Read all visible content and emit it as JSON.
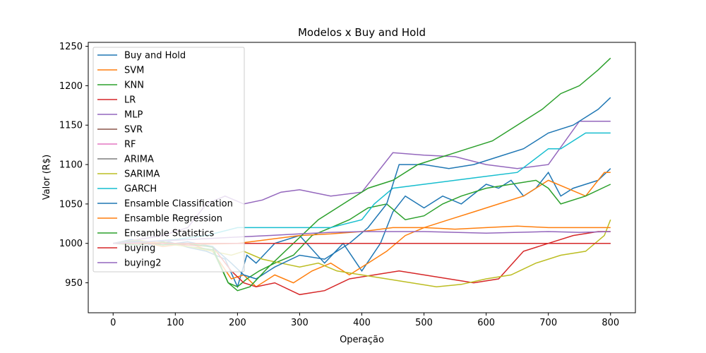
{
  "chart_data": {
    "type": "line",
    "title": "Modelos x Buy and Hold",
    "xlabel": "Operação",
    "ylabel": "Valor (R$)",
    "xlim": [
      -40,
      840
    ],
    "ylim": [
      912,
      1255
    ],
    "xticks": [
      0,
      100,
      200,
      300,
      400,
      500,
      600,
      700,
      800
    ],
    "yticks": [
      950,
      1000,
      1050,
      1100,
      1150,
      1200,
      1250
    ],
    "grid": false,
    "legend_position": "top-left",
    "series": [
      {
        "name": "Buy and Hold",
        "color": "#1f77b4",
        "x": [
          0,
          30,
          60,
          90,
          120,
          150,
          180,
          200,
          215,
          230,
          260,
          300,
          340,
          370,
          400,
          430,
          450,
          470,
          500,
          530,
          560,
          600,
          620,
          640,
          660,
          680,
          700,
          720,
          740,
          760,
          780,
          800
        ],
        "y": [
          1000,
          1005,
          998,
          1002,
          995,
          990,
          980,
          945,
          985,
          975,
          1000,
          1010,
          975,
          1000,
          965,
          1000,
          1040,
          1060,
          1045,
          1060,
          1050,
          1075,
          1070,
          1080,
          1060,
          1070,
          1090,
          1060,
          1070,
          1075,
          1080,
          1095
        ]
      },
      {
        "name": "SVM",
        "color": "#ff7f0e",
        "x": [
          0,
          40,
          80,
          120,
          160,
          190,
          210,
          230,
          260,
          290,
          320,
          350,
          380,
          410,
          440,
          470,
          500,
          540,
          580,
          620,
          660,
          700,
          730,
          760,
          790,
          800
        ],
        "y": [
          1000,
          1003,
          996,
          1000,
          990,
          955,
          960,
          945,
          960,
          950,
          965,
          975,
          960,
          975,
          990,
          1010,
          1020,
          1030,
          1040,
          1050,
          1060,
          1080,
          1070,
          1060,
          1090,
          1090
        ]
      },
      {
        "name": "KNN",
        "color": "#2ca02c",
        "x": [
          0,
          40,
          80,
          120,
          160,
          185,
          200,
          215,
          235,
          260,
          290,
          320,
          350,
          380,
          410,
          440,
          470,
          500,
          530,
          560,
          600,
          640,
          680,
          700,
          720,
          760,
          800
        ],
        "y": [
          1000,
          998,
          1002,
          996,
          992,
          950,
          945,
          955,
          965,
          975,
          985,
          1010,
          1020,
          1030,
          1045,
          1050,
          1030,
          1035,
          1050,
          1060,
          1070,
          1075,
          1080,
          1070,
          1050,
          1060,
          1075
        ]
      },
      {
        "name": "LR",
        "color": "#d62728",
        "x": [
          0,
          40,
          80,
          120,
          160,
          190,
          210,
          230,
          260,
          300,
          340,
          380,
          420,
          460,
          500,
          540,
          580,
          620,
          660,
          700,
          740,
          780,
          800
        ],
        "y": [
          1000,
          1001,
          1000,
          998,
          996,
          965,
          950,
          945,
          950,
          935,
          940,
          955,
          960,
          965,
          960,
          955,
          950,
          955,
          990,
          1000,
          1010,
          1015,
          1015
        ]
      },
      {
        "name": "MLP",
        "color": "#9467bd",
        "x": [
          0,
          40,
          80,
          120,
          150,
          180,
          210,
          240,
          270,
          300,
          350,
          400,
          450,
          500,
          550,
          600,
          650,
          700,
          750,
          800
        ],
        "y": [
          1000,
          1005,
          1010,
          1020,
          1050,
          1060,
          1050,
          1055,
          1065,
          1068,
          1060,
          1065,
          1115,
          1112,
          1110,
          1100,
          1095,
          1100,
          1155,
          1155
        ]
      },
      {
        "name": "SVR",
        "color": "#8c564b",
        "x": [
          0,
          100,
          200,
          300,
          400,
          500,
          600,
          700,
          800
        ],
        "y": [
          1000,
          1000,
          1000,
          1000,
          1000,
          1000,
          1000,
          1000,
          1000
        ]
      },
      {
        "name": "RF",
        "color": "#e377c2",
        "x": [
          0,
          100,
          200,
          300,
          400,
          500,
          600,
          700,
          800
        ],
        "y": [
          1000,
          1000,
          1000,
          1000,
          1000,
          1000,
          1000,
          1000,
          1000
        ]
      },
      {
        "name": "ARIMA",
        "color": "#7f7f7f",
        "x": [
          0,
          100,
          200,
          300,
          400,
          500,
          600,
          700,
          800
        ],
        "y": [
          1000,
          1000,
          1000,
          1000,
          1000,
          1000,
          1000,
          1000,
          1000
        ]
      },
      {
        "name": "SARIMA",
        "color": "#bcbd22",
        "x": [
          0,
          40,
          80,
          120,
          160,
          190,
          210,
          240,
          270,
          300,
          330,
          360,
          400,
          440,
          480,
          520,
          560,
          600,
          640,
          680,
          720,
          760,
          790,
          800
        ],
        "y": [
          1000,
          1004,
          1000,
          996,
          990,
          985,
          990,
          980,
          975,
          970,
          975,
          965,
          960,
          955,
          950,
          945,
          948,
          955,
          960,
          975,
          985,
          990,
          1010,
          1030
        ]
      },
      {
        "name": "GARCH",
        "color": "#17becf",
        "x": [
          0,
          50,
          100,
          150,
          200,
          250,
          300,
          350,
          400,
          420,
          450,
          500,
          550,
          600,
          650,
          700,
          720,
          760,
          800
        ],
        "y": [
          1000,
          1002,
          1005,
          1010,
          1020,
          1020,
          1020,
          1020,
          1030,
          1050,
          1070,
          1075,
          1080,
          1085,
          1090,
          1120,
          1120,
          1140,
          1140
        ]
      },
      {
        "name": "Ensamble Classification",
        "color": "#1f77b4",
        "x": [
          0,
          40,
          80,
          120,
          160,
          190,
          210,
          230,
          260,
          300,
          340,
          380,
          410,
          440,
          460,
          500,
          540,
          580,
          620,
          660,
          700,
          740,
          780,
          800
        ],
        "y": [
          1000,
          1003,
          998,
          1002,
          996,
          975,
          960,
          955,
          970,
          985,
          980,
          1000,
          1020,
          1050,
          1100,
          1100,
          1095,
          1100,
          1110,
          1120,
          1140,
          1150,
          1170,
          1185
        ]
      },
      {
        "name": "Ensamble Regression",
        "color": "#ff7f0e",
        "x": [
          0,
          50,
          100,
          150,
          200,
          250,
          300,
          350,
          400,
          450,
          500,
          550,
          600,
          650,
          700,
          750,
          800
        ],
        "y": [
          1000,
          1001,
          1000,
          999,
          1000,
          1005,
          1010,
          1012,
          1015,
          1020,
          1020,
          1018,
          1020,
          1022,
          1020,
          1020,
          1020
        ]
      },
      {
        "name": "Ensamble Statistics",
        "color": "#2ca02c",
        "x": [
          0,
          40,
          80,
          120,
          160,
          185,
          200,
          220,
          250,
          290,
          330,
          370,
          410,
          450,
          490,
          530,
          570,
          610,
          650,
          690,
          720,
          750,
          780,
          800
        ],
        "y": [
          1000,
          1002,
          998,
          1000,
          995,
          950,
          940,
          945,
          970,
          1000,
          1030,
          1050,
          1070,
          1080,
          1100,
          1110,
          1120,
          1130,
          1150,
          1170,
          1190,
          1200,
          1220,
          1235
        ]
      },
      {
        "name": "buying",
        "color": "#d62728",
        "x": [
          0,
          100,
          200,
          300,
          400,
          500,
          600,
          700,
          800
        ],
        "y": [
          1000,
          1000,
          1000,
          1000,
          1000,
          1000,
          1000,
          1000,
          1000
        ]
      },
      {
        "name": "buying2",
        "color": "#9467bd",
        "x": [
          0,
          50,
          100,
          150,
          200,
          250,
          300,
          350,
          400,
          450,
          500,
          550,
          600,
          650,
          700,
          750,
          800
        ],
        "y": [
          1000,
          1002,
          1004,
          1006,
          1008,
          1010,
          1012,
          1014,
          1015,
          1015,
          1015,
          1014,
          1013,
          1014,
          1015,
          1014,
          1015
        ]
      }
    ]
  }
}
